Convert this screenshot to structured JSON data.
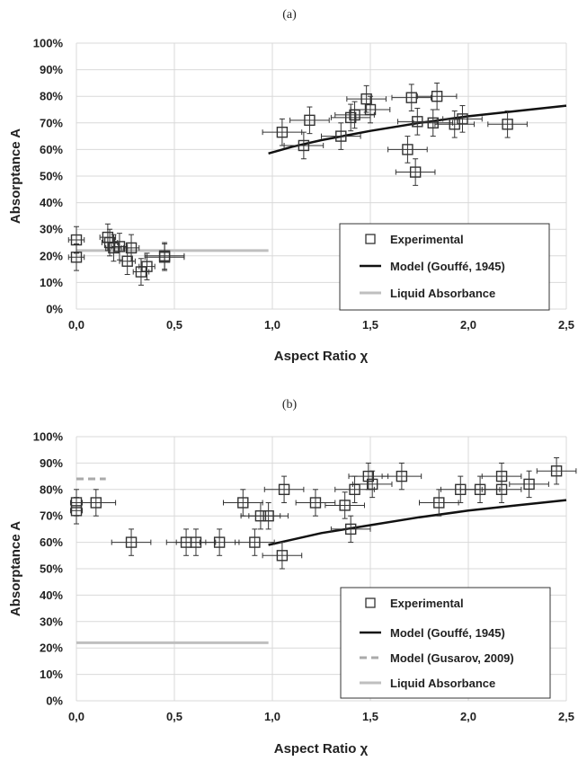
{
  "chart_data": [
    {
      "type": "scatter",
      "panel_label": "(a)",
      "xlabel": "Aspect Ratio χ",
      "ylabel": "Absorptance A",
      "xlim": [
        0,
        2.5
      ],
      "ylim": [
        0,
        100
      ],
      "x_ticks": [
        "0,0",
        "0,5",
        "1,0",
        "1,5",
        "2,0",
        "2,5"
      ],
      "y_ticks": [
        "0%",
        "10%",
        "20%",
        "30%",
        "40%",
        "50%",
        "60%",
        "70%",
        "80%",
        "90%",
        "100%"
      ],
      "grid": true,
      "legend_position": "bottom-right",
      "legend": [
        "Experimental",
        "Model (Gouffé, 1945)",
        "Liquid Absorbance"
      ],
      "colors": {
        "experimental": "#333333",
        "model": "#111111",
        "liquid": "#bfbfbf"
      },
      "experimental": [
        {
          "x": 0.0,
          "y": 26,
          "xerr": 0.04,
          "yerr": 5
        },
        {
          "x": 0.0,
          "y": 19.5,
          "xerr": 0.04,
          "yerr": 5
        },
        {
          "x": 0.16,
          "y": 27,
          "xerr": 0.04,
          "yerr": 5
        },
        {
          "x": 0.17,
          "y": 25,
          "xerr": 0.04,
          "yerr": 5
        },
        {
          "x": 0.19,
          "y": 23,
          "xerr": 0.04,
          "yerr": 5
        },
        {
          "x": 0.22,
          "y": 23.5,
          "xerr": 0.04,
          "yerr": 5
        },
        {
          "x": 0.26,
          "y": 18,
          "xerr": 0.04,
          "yerr": 5
        },
        {
          "x": 0.28,
          "y": 23,
          "xerr": 0.04,
          "yerr": 5
        },
        {
          "x": 0.33,
          "y": 14,
          "xerr": 0.04,
          "yerr": 5
        },
        {
          "x": 0.36,
          "y": 16,
          "xerr": 0.04,
          "yerr": 5
        },
        {
          "x": 0.45,
          "y": 19.5,
          "xerr": 0.1,
          "yerr": 5
        },
        {
          "x": 0.45,
          "y": 20,
          "xerr": 0.1,
          "yerr": 5
        },
        {
          "x": 1.05,
          "y": 66.5,
          "xerr": 0.1,
          "yerr": 5
        },
        {
          "x": 1.16,
          "y": 61.5,
          "xerr": 0.1,
          "yerr": 5
        },
        {
          "x": 1.19,
          "y": 71,
          "xerr": 0.1,
          "yerr": 5
        },
        {
          "x": 1.35,
          "y": 65,
          "xerr": 0.1,
          "yerr": 5
        },
        {
          "x": 1.4,
          "y": 72,
          "xerr": 0.1,
          "yerr": 5
        },
        {
          "x": 1.42,
          "y": 73,
          "xerr": 0.1,
          "yerr": 5
        },
        {
          "x": 1.48,
          "y": 79,
          "xerr": 0.1,
          "yerr": 5
        },
        {
          "x": 1.5,
          "y": 75,
          "xerr": 0.1,
          "yerr": 5
        },
        {
          "x": 1.69,
          "y": 60,
          "xerr": 0.1,
          "yerr": 5
        },
        {
          "x": 1.71,
          "y": 79.5,
          "xerr": 0.1,
          "yerr": 5
        },
        {
          "x": 1.73,
          "y": 51.5,
          "xerr": 0.1,
          "yerr": 5
        },
        {
          "x": 1.74,
          "y": 70.5,
          "xerr": 0.1,
          "yerr": 5
        },
        {
          "x": 1.82,
          "y": 70,
          "xerr": 0.1,
          "yerr": 5
        },
        {
          "x": 1.84,
          "y": 80,
          "xerr": 0.1,
          "yerr": 5
        },
        {
          "x": 1.93,
          "y": 69.5,
          "xerr": 0.1,
          "yerr": 5
        },
        {
          "x": 1.97,
          "y": 71.5,
          "xerr": 0.1,
          "yerr": 5
        },
        {
          "x": 2.2,
          "y": 69.5,
          "xerr": 0.1,
          "yerr": 5
        }
      ],
      "model_gouffe": [
        {
          "x": 0.98,
          "y": 58.5
        },
        {
          "x": 1.1,
          "y": 61
        },
        {
          "x": 1.25,
          "y": 63.5
        },
        {
          "x": 1.5,
          "y": 67
        },
        {
          "x": 1.75,
          "y": 70
        },
        {
          "x": 2.0,
          "y": 72.5
        },
        {
          "x": 2.25,
          "y": 74.5
        },
        {
          "x": 2.5,
          "y": 76.5
        }
      ],
      "liquid_absorbance": {
        "x": [
          0.0,
          0.98
        ],
        "y": 22
      }
    },
    {
      "type": "scatter",
      "panel_label": "(b)",
      "xlabel": "Aspect Ratio χ",
      "ylabel": "Absorptance A",
      "xlim": [
        0,
        2.5
      ],
      "ylim": [
        0,
        100
      ],
      "x_ticks": [
        "0,0",
        "0,5",
        "1,0",
        "1,5",
        "2,0",
        "2,5"
      ],
      "y_ticks": [
        "0%",
        "10%",
        "20%",
        "30%",
        "40%",
        "50%",
        "60%",
        "70%",
        "80%",
        "90%",
        "100%"
      ],
      "grid": true,
      "legend_position": "bottom-right",
      "legend": [
        "Experimental",
        "Model (Gouffé, 1945)",
        "Model (Gusarov, 2009)",
        "Liquid Absorbance"
      ],
      "colors": {
        "experimental": "#333333",
        "model": "#111111",
        "gusarov": "#aaaaaa",
        "liquid": "#bfbfbf"
      },
      "experimental": [
        {
          "x": 0.0,
          "y": 75,
          "xerr": 0.03,
          "yerr": 5
        },
        {
          "x": 0.0,
          "y": 72,
          "xerr": 0.03,
          "yerr": 5
        },
        {
          "x": 0.1,
          "y": 75,
          "xerr": 0.1,
          "yerr": 5
        },
        {
          "x": 0.28,
          "y": 60,
          "xerr": 0.1,
          "yerr": 5
        },
        {
          "x": 0.56,
          "y": 60,
          "xerr": 0.1,
          "yerr": 5
        },
        {
          "x": 0.61,
          "y": 60,
          "xerr": 0.1,
          "yerr": 5
        },
        {
          "x": 0.73,
          "y": 60,
          "xerr": 0.1,
          "yerr": 5
        },
        {
          "x": 0.85,
          "y": 75,
          "xerr": 0.1,
          "yerr": 5
        },
        {
          "x": 0.91,
          "y": 60,
          "xerr": 0.1,
          "yerr": 5
        },
        {
          "x": 0.94,
          "y": 70,
          "xerr": 0.1,
          "yerr": 5
        },
        {
          "x": 0.98,
          "y": 70,
          "xerr": 0.1,
          "yerr": 5
        },
        {
          "x": 1.05,
          "y": 55,
          "xerr": 0.1,
          "yerr": 5
        },
        {
          "x": 1.06,
          "y": 80,
          "xerr": 0.1,
          "yerr": 5
        },
        {
          "x": 1.22,
          "y": 75,
          "xerr": 0.1,
          "yerr": 5
        },
        {
          "x": 1.37,
          "y": 74,
          "xerr": 0.1,
          "yerr": 5
        },
        {
          "x": 1.4,
          "y": 65,
          "xerr": 0.1,
          "yerr": 5
        },
        {
          "x": 1.42,
          "y": 80,
          "xerr": 0.1,
          "yerr": 5
        },
        {
          "x": 1.49,
          "y": 85,
          "xerr": 0.1,
          "yerr": 5
        },
        {
          "x": 1.51,
          "y": 82,
          "xerr": 0.1,
          "yerr": 5
        },
        {
          "x": 1.66,
          "y": 85,
          "xerr": 0.1,
          "yerr": 5
        },
        {
          "x": 1.85,
          "y": 75,
          "xerr": 0.1,
          "yerr": 5
        },
        {
          "x": 1.96,
          "y": 80,
          "xerr": 0.1,
          "yerr": 5
        },
        {
          "x": 2.06,
          "y": 80,
          "xerr": 0.1,
          "yerr": 5
        },
        {
          "x": 2.17,
          "y": 80,
          "xerr": 0.1,
          "yerr": 5
        },
        {
          "x": 2.17,
          "y": 85,
          "xerr": 0.1,
          "yerr": 5
        },
        {
          "x": 2.31,
          "y": 82,
          "xerr": 0.1,
          "yerr": 5
        },
        {
          "x": 2.45,
          "y": 87,
          "xerr": 0.1,
          "yerr": 5
        }
      ],
      "model_gouffe": [
        {
          "x": 0.98,
          "y": 59
        },
        {
          "x": 1.1,
          "y": 61
        },
        {
          "x": 1.25,
          "y": 63.5
        },
        {
          "x": 1.5,
          "y": 66.5
        },
        {
          "x": 1.75,
          "y": 69.5
        },
        {
          "x": 2.0,
          "y": 72
        },
        {
          "x": 2.25,
          "y": 74
        },
        {
          "x": 2.5,
          "y": 76
        }
      ],
      "model_gusarov": {
        "x": [
          0.0,
          0.15
        ],
        "y": 84
      },
      "liquid_absorbance": {
        "x": [
          0.0,
          0.98
        ],
        "y": 22
      }
    }
  ]
}
